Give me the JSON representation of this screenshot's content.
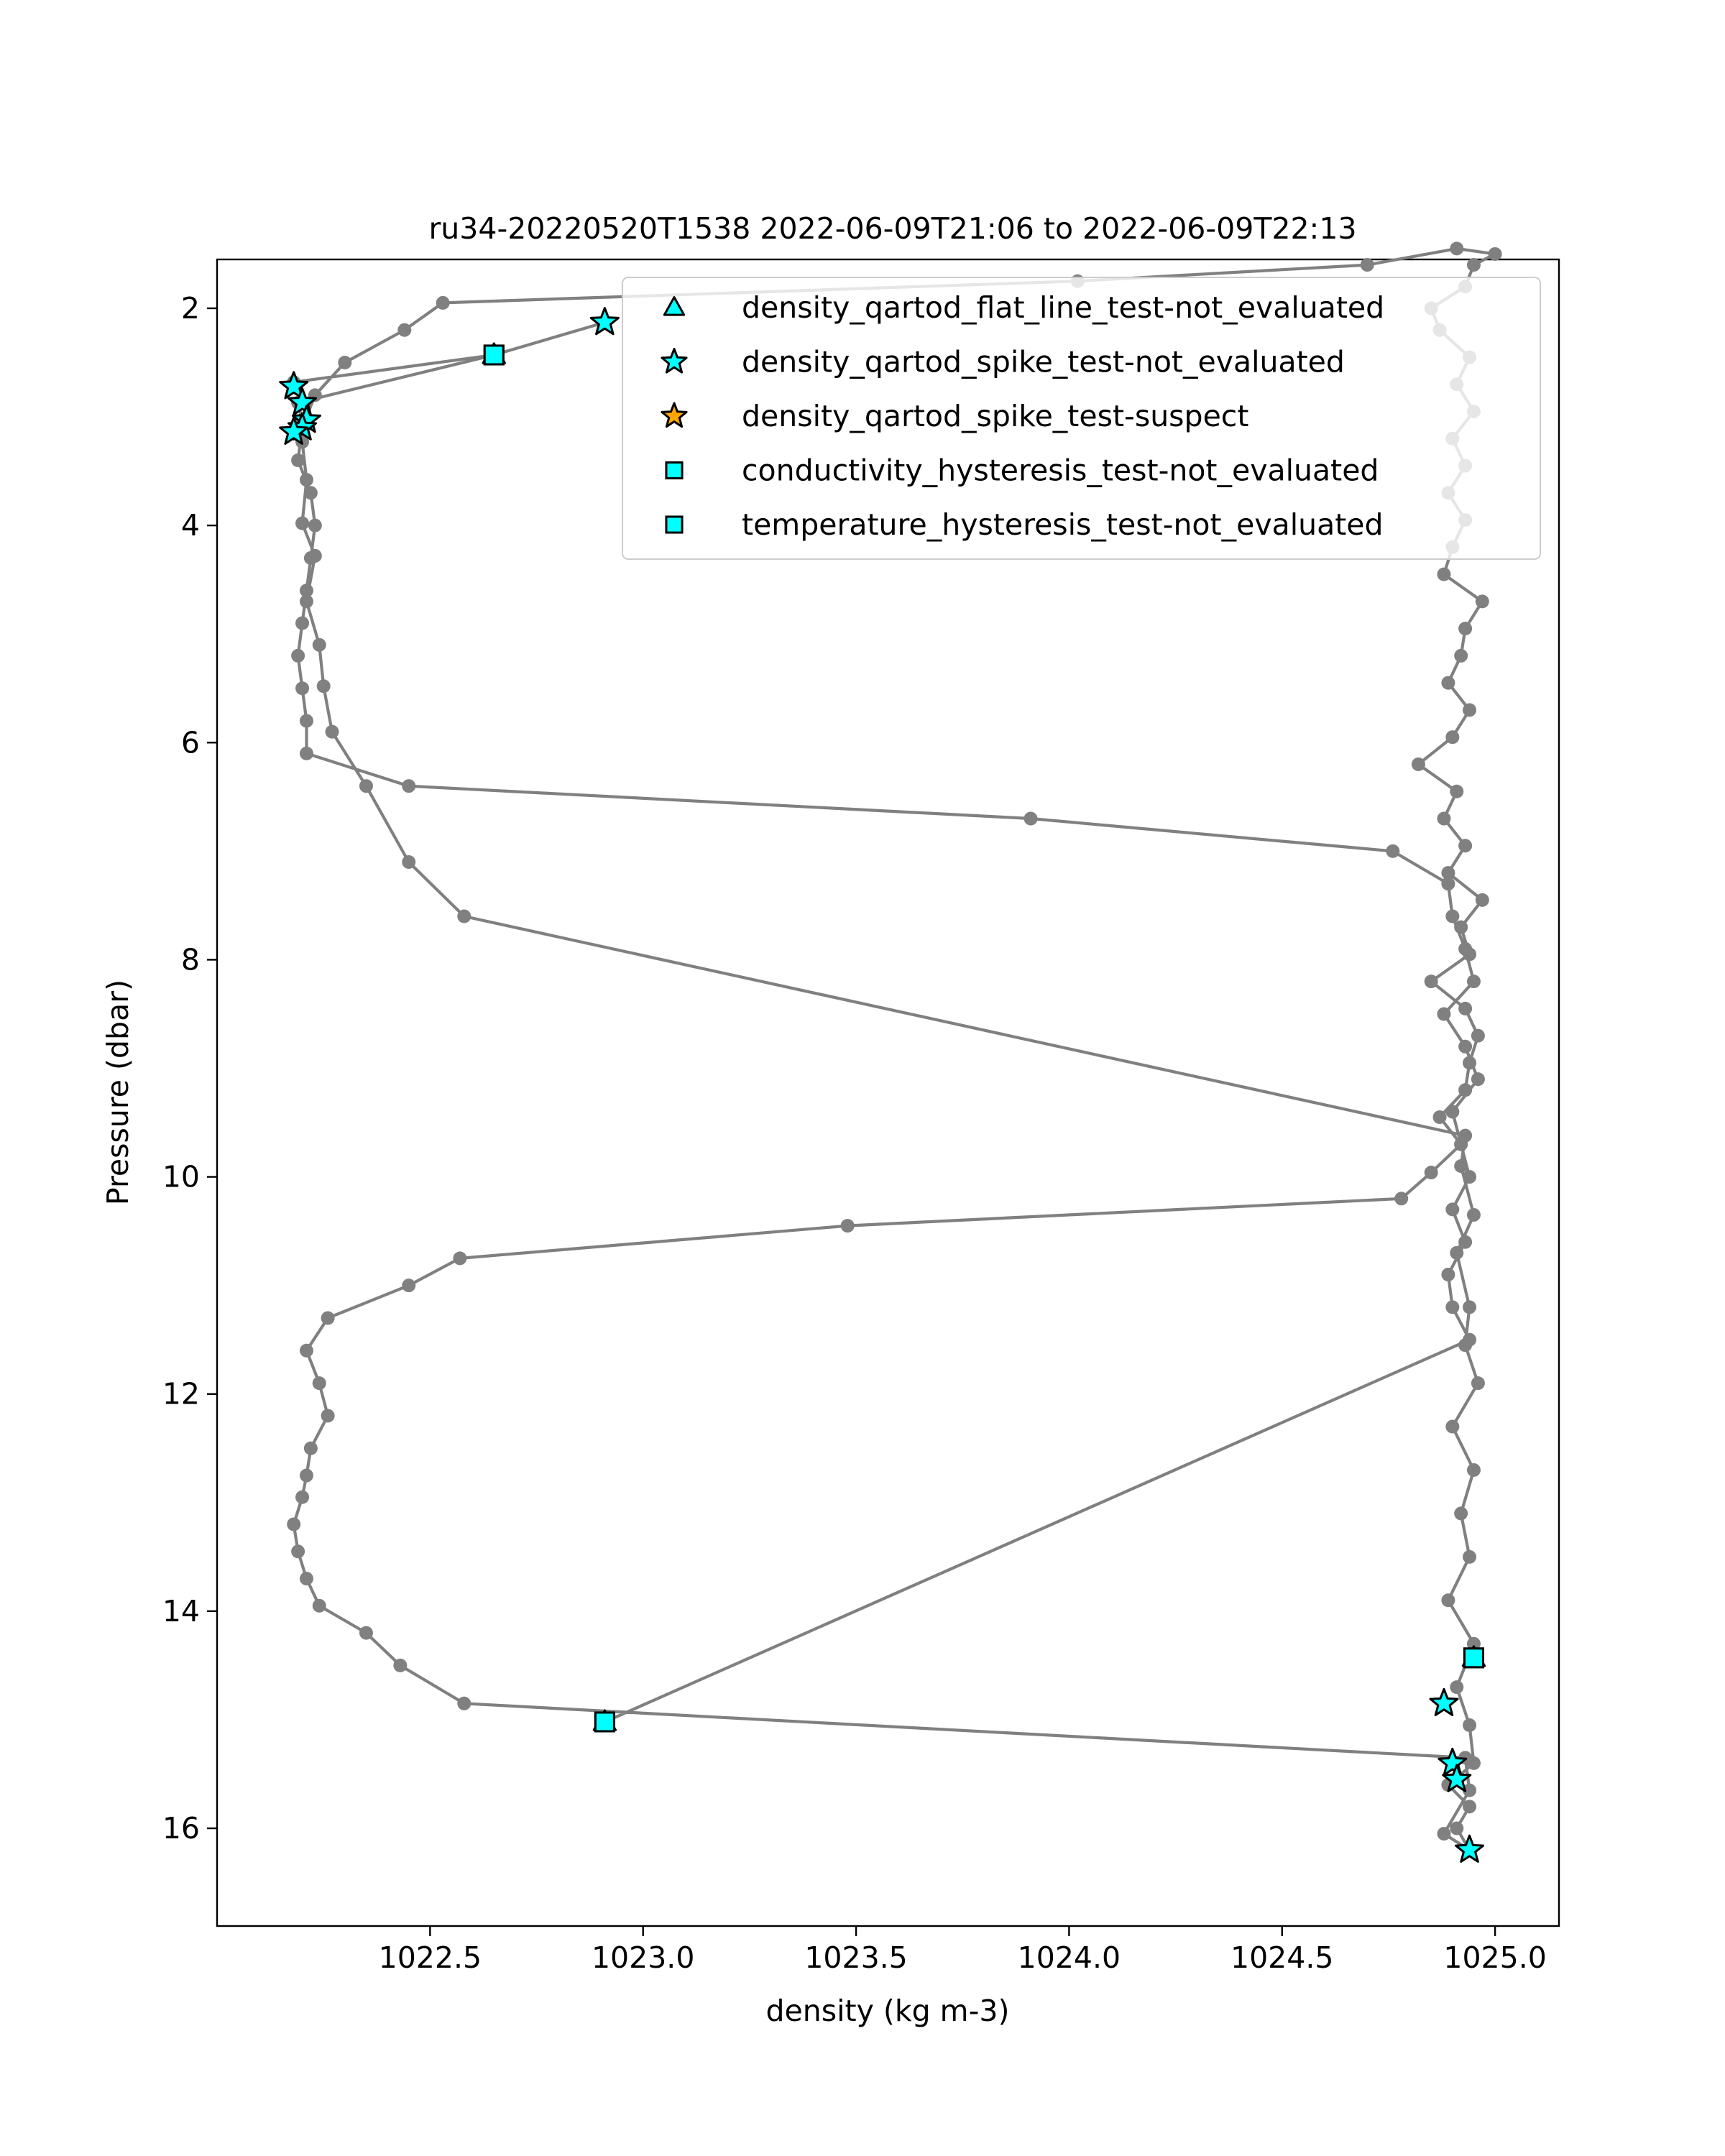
{
  "chart_data": {
    "type": "line",
    "title": "ru34-20220520T1538 2022-06-09T21:06 to 2022-06-09T22:13",
    "xlabel": "density (kg m-3)",
    "ylabel": "Pressure (dbar)",
    "xlim": [
      1022.0,
      1025.15
    ],
    "ylim": [
      16.9,
      1.55
    ],
    "y_inverted": true,
    "grid": false,
    "legend_position": "top-right",
    "x_ticks": [
      1022.5,
      1023.0,
      1023.5,
      1024.0,
      1024.5,
      1025.0
    ],
    "x_tick_labels": [
      "1022.5",
      "1023.0",
      "1023.5",
      "1024.0",
      "1024.5",
      "1025.0"
    ],
    "y_ticks": [
      2,
      4,
      6,
      8,
      10,
      12,
      14,
      16
    ],
    "y_tick_labels": [
      "2",
      "4",
      "6",
      "8",
      "10",
      "12",
      "14",
      "16"
    ],
    "colors": {
      "profile_line": "#808080",
      "marker_fill_cyan": "#00ffff",
      "marker_fill_orange": "#ffa500",
      "marker_edge": "#000000"
    },
    "profile": {
      "x": [
        1022.91,
        1022.65,
        1022.18,
        1022.65,
        1022.19,
        1022.2,
        1022.18,
        1022.2,
        1022.21,
        1022.2,
        1022.23,
        1022.21,
        1022.24,
        1022.25,
        1022.27,
        1022.35,
        1022.45,
        1022.58,
        1024.93,
        1024.92,
        1024.95,
        1024.91,
        1024.94,
        1024.93,
        1024.96,
        1024.9,
        1024.95,
        1024.92,
        1024.94,
        1024.89,
        1024.95,
        1024.91,
        1024.94,
        1024.95,
        1024.89,
        1024.94,
        1024.91,
        1024.94,
        1024.88,
        1024.94,
        1024.93,
        1022.58,
        1022.43,
        1022.35,
        1022.24,
        1022.21,
        1022.19,
        1022.18,
        1022.2,
        1022.21,
        1022.22,
        1022.26,
        1022.24,
        1022.21,
        1022.26,
        1022.45,
        1022.57,
        1023.48,
        1024.78,
        1024.85,
        1024.92,
        1024.87,
        1024.93,
        1024.94,
        1024.96,
        1024.93,
        1024.85,
        1024.94,
        1024.92,
        1024.97,
        1024.89,
        1024.93,
        1024.88,
        1024.91,
        1024.82,
        1024.9,
        1024.94,
        1024.89,
        1024.92,
        1024.93,
        1024.97,
        1024.88,
        1024.9,
        1024.93,
        1024.89,
        1024.93,
        1024.9,
        1024.95,
        1024.91,
        1024.94,
        1024.87,
        1024.85,
        1024.93,
        1024.95,
        1025.0,
        1024.91,
        1024.7,
        1024.02,
        1022.53,
        1022.44,
        1022.3,
        1022.23,
        1022.2,
        1022.19,
        1022.22,
        1022.23,
        1022.22,
        1022.21,
        1022.2,
        1022.19,
        1022.2,
        1022.21,
        1022.21,
        1022.45,
        1023.91,
        1024.76,
        1024.89,
        1024.9,
        1024.93,
        1024.95,
        1024.88,
        1024.93,
        1024.96,
        1024.9,
        1024.92,
        1024.94,
        1024.9,
        1024.93,
        1024.89,
        1024.9,
        1024.94,
        1022.91
      ],
      "y": [
        2.13,
        2.43,
        2.68,
        2.43,
        2.87,
        3.03,
        3.13,
        3.23,
        3.58,
        3.98,
        4.28,
        4.7,
        5.1,
        5.48,
        5.9,
        6.4,
        7.1,
        7.6,
        9.62,
        9.9,
        10.35,
        10.7,
        11.2,
        11.55,
        11.9,
        12.3,
        12.7,
        13.1,
        13.5,
        13.9,
        14.3,
        14.7,
        15.05,
        15.4,
        15.6,
        15.8,
        16.0,
        16.2,
        16.05,
        15.65,
        15.35,
        14.85,
        14.5,
        14.2,
        13.95,
        13.7,
        13.45,
        13.2,
        12.95,
        12.75,
        12.5,
        12.2,
        11.9,
        11.6,
        11.3,
        11.0,
        10.75,
        10.45,
        10.2,
        9.96,
        9.7,
        9.45,
        9.2,
        8.95,
        8.7,
        8.45,
        8.2,
        7.95,
        7.7,
        7.45,
        7.2,
        6.95,
        6.7,
        6.45,
        6.2,
        5.95,
        5.7,
        5.45,
        5.2,
        4.95,
        4.7,
        4.45,
        4.2,
        3.95,
        3.7,
        3.45,
        3.2,
        2.95,
        2.7,
        2.45,
        2.2,
        2.0,
        1.8,
        1.6,
        1.5,
        1.45,
        1.6,
        1.75,
        1.95,
        2.2,
        2.5,
        2.8,
        3.1,
        3.4,
        3.7,
        4.0,
        4.3,
        4.6,
        4.9,
        5.2,
        5.5,
        5.8,
        6.1,
        6.4,
        6.7,
        7.0,
        7.3,
        7.6,
        7.9,
        8.2,
        8.5,
        8.8,
        9.1,
        9.4,
        9.7,
        10.0,
        10.3,
        10.6,
        10.9,
        11.2,
        11.5,
        15.02
      ]
    },
    "series": [
      {
        "name": "density_qartod_flat_line_test-not_evaluated",
        "marker": "triangle",
        "color": "#00ffff",
        "points": [
          [
            1022.65,
            2.43
          ],
          [
            1024.95,
            14.43
          ],
          [
            1022.91,
            15.02
          ]
        ]
      },
      {
        "name": "density_qartod_spike_test-not_evaluated",
        "marker": "star",
        "color": "#00ffff",
        "points": [
          [
            1022.91,
            2.13
          ],
          [
            1022.18,
            2.72
          ],
          [
            1022.2,
            2.87
          ],
          [
            1022.21,
            3.03
          ],
          [
            1022.2,
            3.1
          ],
          [
            1022.18,
            3.14
          ],
          [
            1024.88,
            14.85
          ],
          [
            1024.9,
            15.4
          ],
          [
            1024.91,
            15.55
          ],
          [
            1024.94,
            16.2
          ]
        ]
      },
      {
        "name": "density_qartod_spike_test-suspect",
        "marker": "star",
        "color": "#ffa500",
        "points": []
      },
      {
        "name": "conductivity_hysteresis_test-not_evaluated",
        "marker": "square",
        "color": "#00ffff",
        "points": [
          [
            1022.65,
            2.43
          ],
          [
            1024.95,
            14.43
          ],
          [
            1022.91,
            15.02
          ]
        ]
      },
      {
        "name": "temperature_hysteresis_test-not_evaluated",
        "marker": "square",
        "color": "#00ffff",
        "points": [
          [
            1022.65,
            2.43
          ],
          [
            1024.95,
            14.43
          ],
          [
            1022.91,
            15.02
          ]
        ]
      }
    ]
  }
}
